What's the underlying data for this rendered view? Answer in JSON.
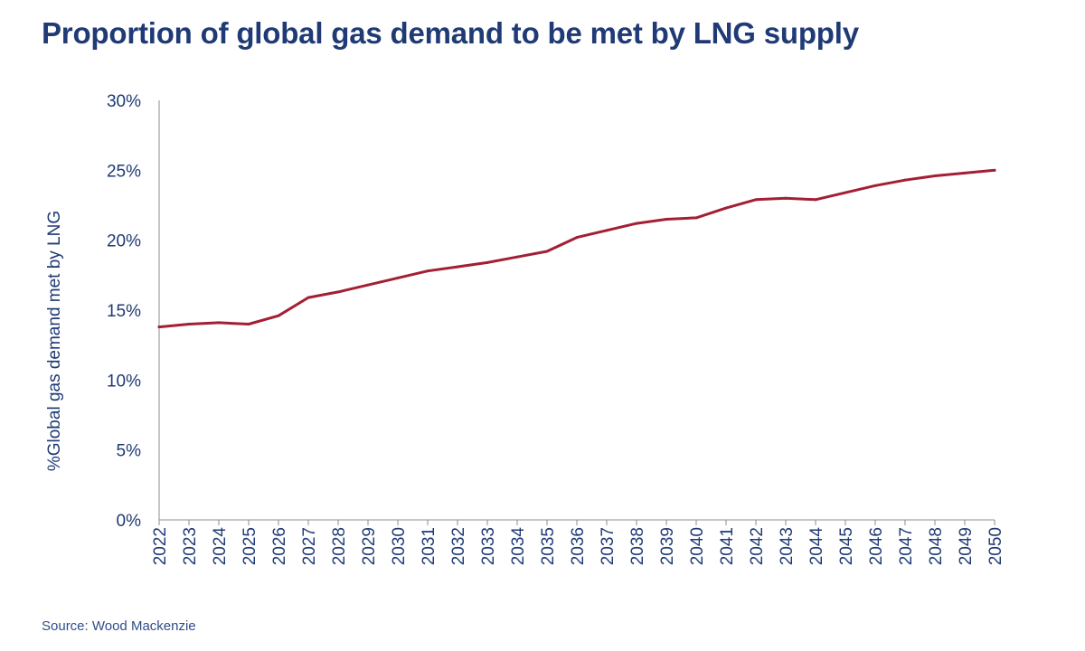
{
  "chart_data": {
    "type": "line",
    "title": "Proportion of global gas demand to be met by LNG supply",
    "ylabel": "%Global gas demand met by LNG",
    "xlabel": "",
    "ylim": [
      0,
      30
    ],
    "ytick_labels": [
      "0%",
      "5%",
      "10%",
      "15%",
      "20%",
      "25%",
      "30%"
    ],
    "grid": false,
    "line_color": "#a31f34",
    "x": [
      "2022",
      "2023",
      "2024",
      "2025",
      "2026",
      "2027",
      "2028",
      "2029",
      "2030",
      "2031",
      "2032",
      "2033",
      "2034",
      "2035",
      "2036",
      "2037",
      "2038",
      "2039",
      "2040",
      "2041",
      "2042",
      "2043",
      "2044",
      "2045",
      "2046",
      "2047",
      "2048",
      "2049",
      "2050"
    ],
    "series": [
      {
        "values": [
          13.8,
          14.0,
          14.1,
          14.0,
          14.6,
          15.9,
          16.3,
          16.8,
          17.3,
          17.8,
          18.1,
          18.4,
          18.8,
          19.2,
          20.2,
          20.7,
          21.2,
          21.5,
          21.6,
          22.3,
          22.9,
          23.0,
          22.9,
          23.4,
          23.9,
          24.3,
          24.6,
          24.8,
          25.0
        ]
      }
    ]
  },
  "source": "Source: Wood Mackenzie"
}
